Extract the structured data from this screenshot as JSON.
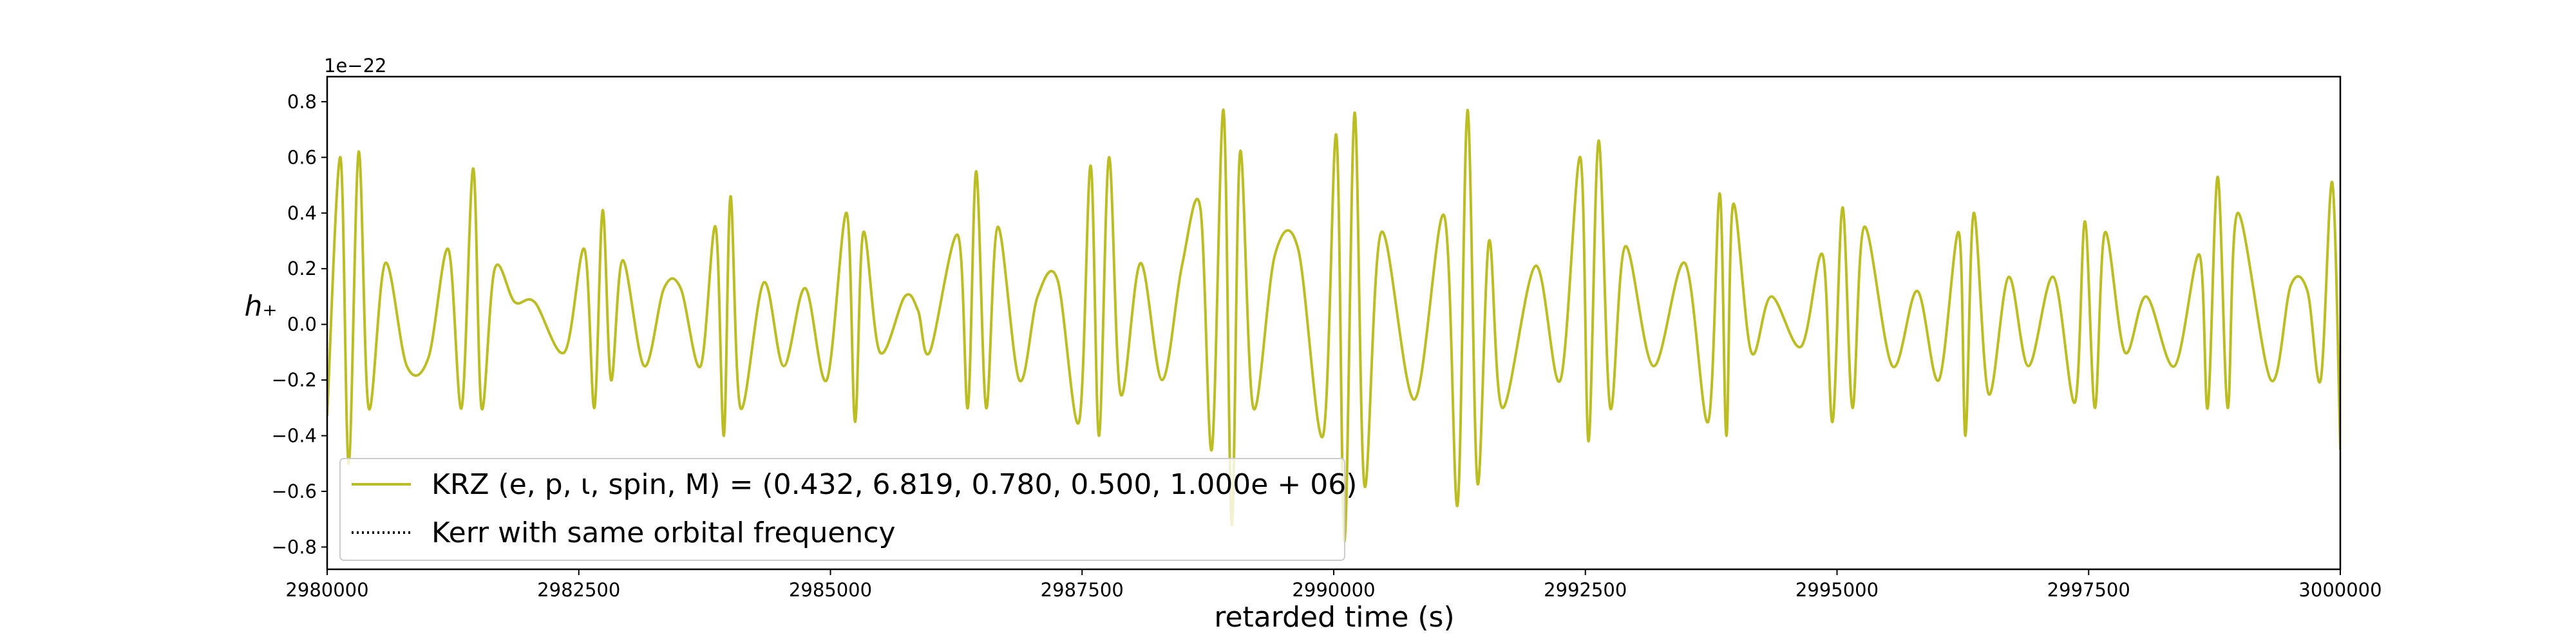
{
  "chart_data": {
    "type": "line",
    "xlabel": "retarded time (s)",
    "ylabel": "h₊",
    "offset_label": "1e−22",
    "xlim": [
      2980000,
      3000000
    ],
    "xticks": [
      2980000,
      2982500,
      2985000,
      2987500,
      2990000,
      2992500,
      2995000,
      2997500,
      3000000
    ],
    "ylim": [
      -0.88,
      0.89
    ],
    "yticks": [
      {
        "value": -0.8,
        "label": "−0.8"
      },
      {
        "value": -0.6,
        "label": "−0.6"
      },
      {
        "value": -0.4,
        "label": "−0.4"
      },
      {
        "value": -0.2,
        "label": "−0.2"
      },
      {
        "value": 0,
        "label": "0.0"
      },
      0.2,
      0.4,
      0.6,
      0.8
    ],
    "legend_position": "lower left",
    "x": [
      2980000,
      2980132,
      2980214,
      2980313,
      2980412,
      2980577,
      2980792,
      2981006,
      2981204,
      2981336,
      2981451,
      2981534,
      2981665,
      2981863,
      2982061,
      2982358,
      2982556,
      2982655,
      2982737,
      2982820,
      2982935,
      2983150,
      2983347,
      2983512,
      2983710,
      2983859,
      2983941,
      2984007,
      2984106,
      2984337,
      2984535,
      2984749,
      2984963,
      2985161,
      2985244,
      2985326,
      2985491,
      2985739,
      2985870,
      2985986,
      2986266,
      2986365,
      2986448,
      2986547,
      2986662,
      2986876,
      2987058,
      2987256,
      2987470,
      2987585,
      2987668,
      2987767,
      2987882,
      2988080,
      2988294,
      2988492,
      2988674,
      2988789,
      2988905,
      2988987,
      2989070,
      2989201,
      2989416,
      2989647,
      2989894,
      2990026,
      2990108,
      2990207,
      2990306,
      2990471,
      2990801,
      2991098,
      2991230,
      2991329,
      2991428,
      2991543,
      2991675,
      2992005,
      2992252,
      2992450,
      2992532,
      2992631,
      2992747,
      2992895,
      2993176,
      2993489,
      2993720,
      2993835,
      2993901,
      2993967,
      2994148,
      2994346,
      2994643,
      2994857,
      2994956,
      2995055,
      2995154,
      2995270,
      2995550,
      2995797,
      2996012,
      2996210,
      2996276,
      2996358,
      2996506,
      2996704,
      2996902,
      2997150,
      2997364,
      2997463,
      2997562,
      2997661,
      2997859,
      2998073,
      2998353,
      2998600,
      2998683,
      2998782,
      2998881,
      2998980,
      2999310,
      2999508,
      2999673,
      2999805,
      2999920,
      3000000
    ],
    "series": [
      {
        "name": "KRZ (e, p, ι, spin, M) = (0.432, 6.819, 0.780, 0.500, 1.000e + 06)",
        "color": "#bcbd22",
        "linestyle": "solid",
        "values": [
          -0.33,
          0.6,
          -0.5,
          0.62,
          -0.3,
          0.22,
          -0.15,
          -0.12,
          0.27,
          -0.3,
          0.56,
          -0.3,
          0.2,
          0.08,
          0.08,
          -0.1,
          0.27,
          -0.3,
          0.41,
          -0.2,
          0.23,
          -0.15,
          0.13,
          0.13,
          -0.15,
          0.35,
          -0.4,
          0.46,
          -0.3,
          0.15,
          -0.15,
          0.13,
          -0.2,
          0.4,
          -0.35,
          0.33,
          -0.1,
          0.1,
          0.05,
          -0.1,
          0.32,
          -0.3,
          0.55,
          -0.3,
          0.35,
          -0.2,
          0.1,
          0.16,
          -0.35,
          0.57,
          -0.4,
          0.6,
          -0.25,
          0.22,
          -0.2,
          0.21,
          0.42,
          -0.45,
          0.77,
          -0.72,
          0.62,
          -0.3,
          0.25,
          0.27,
          -0.4,
          0.68,
          -0.78,
          0.76,
          -0.58,
          0.33,
          -0.27,
          0.39,
          -0.65,
          0.77,
          -0.57,
          0.3,
          -0.3,
          0.21,
          -0.2,
          0.6,
          -0.42,
          0.66,
          -0.3,
          0.28,
          -0.15,
          0.22,
          -0.35,
          0.47,
          -0.4,
          0.43,
          -0.1,
          0.1,
          -0.08,
          0.25,
          -0.35,
          0.42,
          -0.3,
          0.35,
          -0.15,
          0.12,
          -0.2,
          0.33,
          -0.4,
          0.4,
          -0.25,
          0.17,
          -0.15,
          0.17,
          -0.28,
          0.37,
          -0.3,
          0.33,
          -0.1,
          0.1,
          -0.15,
          0.25,
          -0.3,
          0.53,
          -0.3,
          0.4,
          -0.2,
          0.14,
          0.12,
          -0.2,
          0.51,
          -0.45
        ]
      },
      {
        "name": "Kerr with same orbital frequency",
        "color": "#000000",
        "linestyle": "dotted"
      }
    ]
  }
}
